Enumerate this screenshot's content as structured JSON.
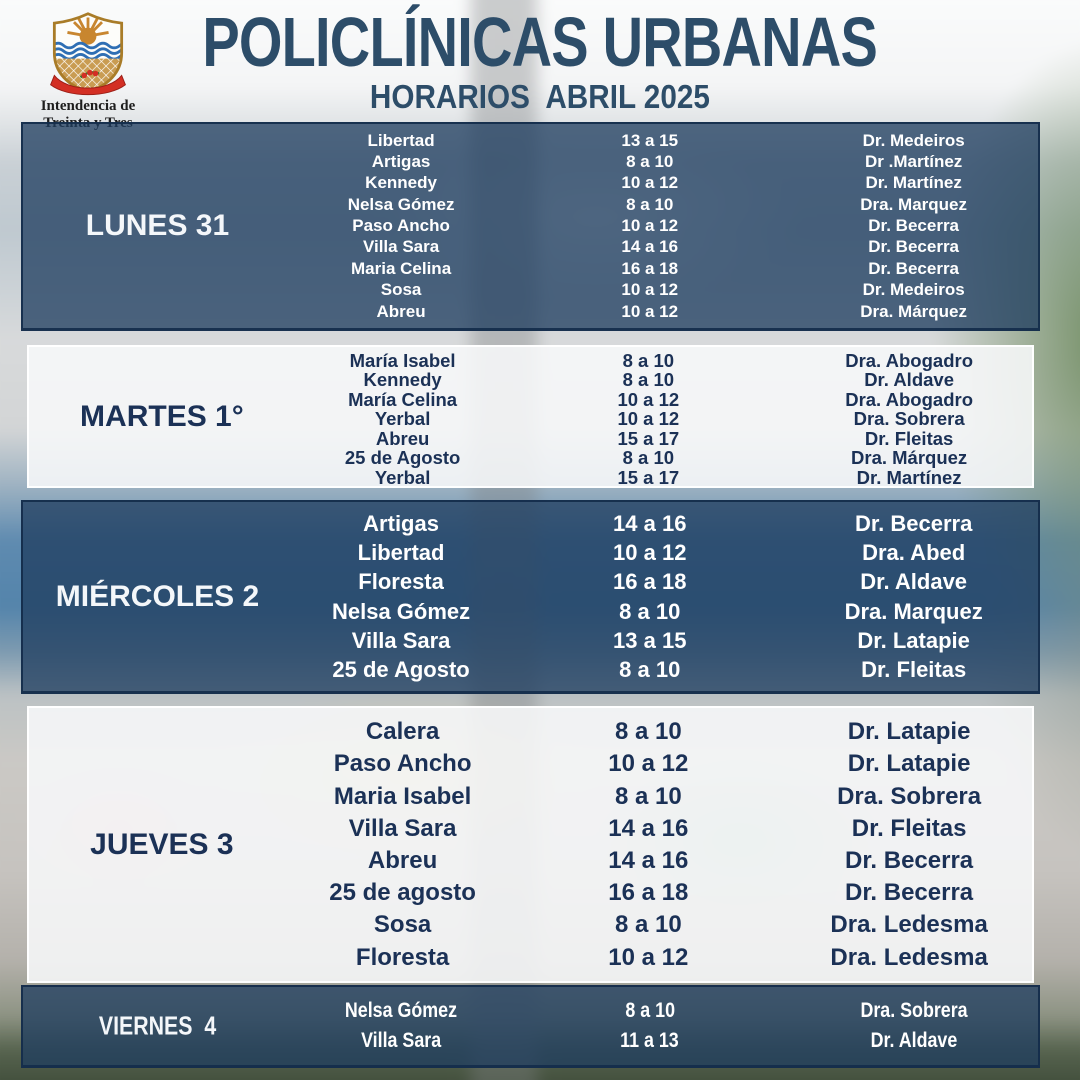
{
  "header": {
    "title": "POLICLÍNICAS URBANAS",
    "subtitle": "HORARIOS  ABRIL 2025",
    "logo_caption_line1": "Intendencia de",
    "logo_caption_line2": "Treinta y Tres"
  },
  "colors": {
    "title_text": "#2d4d69",
    "dark_section_bg": "#41597a",
    "deep_blue_section_bg": "#1c4770",
    "darkest_section_bg": "#122c3e",
    "light_section_bg": "#eceeee",
    "text_on_dark": "#ffffff",
    "text_on_light": "#1b3156"
  },
  "schedule": {
    "days": [
      {
        "label": "LUNES 31",
        "rows": [
          {
            "location": "Libertad",
            "time": "13 a 15",
            "doctor": "Dr. Medeiros"
          },
          {
            "location": "Artigas",
            "time": "8 a 10",
            "doctor": "Dr .Martínez"
          },
          {
            "location": "Kennedy",
            "time": "10 a 12",
            "doctor": "Dr. Martínez"
          },
          {
            "location": "Nelsa Gómez",
            "time": "8 a 10",
            "doctor": "Dra. Marquez"
          },
          {
            "location": "Paso Ancho",
            "time": "10 a 12",
            "doctor": "Dr. Becerra"
          },
          {
            "location": "Villa Sara",
            "time": "14 a 16",
            "doctor": "Dr. Becerra"
          },
          {
            "location": "Maria Celina",
            "time": "16 a 18",
            "doctor": "Dr. Becerra"
          },
          {
            "location": "Sosa",
            "time": "10 a 12",
            "doctor": "Dr. Medeiros"
          },
          {
            "location": "Abreu",
            "time": "10 a 12",
            "doctor": "Dra. Márquez"
          }
        ]
      },
      {
        "label": "MARTES 1°",
        "rows": [
          {
            "location": "María Isabel",
            "time": "8 a 10",
            "doctor": "Dra. Abogadro"
          },
          {
            "location": "Kennedy",
            "time": "8 a 10",
            "doctor": "Dr. Aldave"
          },
          {
            "location": "María Celina",
            "time": "10 a 12",
            "doctor": "Dra. Abogadro"
          },
          {
            "location": "Yerbal",
            "time": "10 a 12",
            "doctor": "Dra. Sobrera"
          },
          {
            "location": "Abreu",
            "time": "15 a 17",
            "doctor": "Dr. Fleitas"
          },
          {
            "location": "25 de Agosto",
            "time": "8 a 10",
            "doctor": "Dra. Márquez"
          },
          {
            "location": "Yerbal",
            "time": "15 a 17",
            "doctor": "Dr. Martínez"
          }
        ]
      },
      {
        "label": "MIÉRCOLES 2",
        "rows": [
          {
            "location": "Artigas",
            "time": "14 a 16",
            "doctor": "Dr. Becerra"
          },
          {
            "location": "Libertad",
            "time": "10 a 12",
            "doctor": "Dra. Abed"
          },
          {
            "location": "Floresta",
            "time": "16 a 18",
            "doctor": "Dr. Aldave"
          },
          {
            "location": "Nelsa Gómez",
            "time": "8 a 10",
            "doctor": "Dra. Marquez"
          },
          {
            "location": "Villa Sara",
            "time": "13 a 15",
            "doctor": "Dr. Latapie"
          },
          {
            "location": "25 de Agosto",
            "time": "8 a 10",
            "doctor": "Dr. Fleitas"
          }
        ]
      },
      {
        "label": "JUEVES 3",
        "rows": [
          {
            "location": "Calera",
            "time": "8 a 10",
            "doctor": "Dr. Latapie"
          },
          {
            "location": "Paso Ancho",
            "time": "10 a 12",
            "doctor": "Dr. Latapie"
          },
          {
            "location": "Maria Isabel",
            "time": "8 a 10",
            "doctor": "Dra. Sobrera"
          },
          {
            "location": "Villa Sara",
            "time": "14 a 16",
            "doctor": "Dr. Fleitas"
          },
          {
            "location": "Abreu",
            "time": "14 a 16",
            "doctor": "Dr. Becerra"
          },
          {
            "location": "25 de agosto",
            "time": "16 a 18",
            "doctor": "Dr. Becerra"
          },
          {
            "location": "Sosa",
            "time": "8 a 10",
            "doctor": "Dra. Ledesma"
          },
          {
            "location": "Floresta",
            "time": "10 a 12",
            "doctor": "Dra. Ledesma"
          }
        ]
      },
      {
        "label": "VIERNES  4",
        "rows": [
          {
            "location": "Nelsa Gómez",
            "time": "8 a 10",
            "doctor": "Dra. Sobrera"
          },
          {
            "location": "Villa Sara",
            "time": "11 a 13",
            "doctor": "Dr. Aldave"
          }
        ]
      }
    ]
  }
}
